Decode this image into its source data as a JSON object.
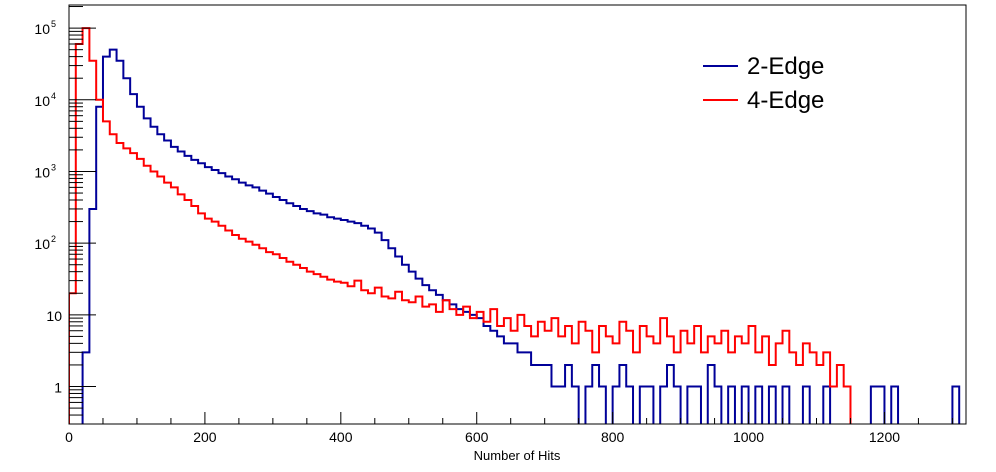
{
  "chart_data": {
    "type": "line",
    "style": "step-histogram",
    "title": "",
    "xlabel": "Number of Hits",
    "ylabel": "",
    "xlim": [
      0,
      1320
    ],
    "ylim": [
      0.3,
      210000
    ],
    "yscale": "log",
    "bin_width": 10,
    "x_ticks": [
      0,
      200,
      400,
      600,
      800,
      1000,
      1200
    ],
    "x_tick_labels": [
      "0",
      "200",
      "400",
      "600",
      "800",
      "1000",
      "1200"
    ],
    "y_ticks": [
      1,
      10,
      100,
      1000,
      10000,
      100000
    ],
    "y_tick_labels": [
      {
        "base": "1",
        "exp": ""
      },
      {
        "base": "10",
        "exp": ""
      },
      {
        "base": "10",
        "exp": "2"
      },
      {
        "base": "10",
        "exp": "3"
      },
      {
        "base": "10",
        "exp": "4"
      },
      {
        "base": "10",
        "exp": "5"
      }
    ],
    "legend_position": "top-right",
    "series": [
      {
        "name": "2-Edge",
        "color": "#000099",
        "values": [
          0,
          0,
          3,
          300,
          8000,
          40000,
          50000,
          35000,
          20000,
          12000,
          8000,
          5500,
          4200,
          3300,
          2700,
          2200,
          1900,
          1650,
          1450,
          1300,
          1150,
          1050,
          950,
          850,
          780,
          700,
          640,
          600,
          540,
          490,
          440,
          400,
          360,
          330,
          300,
          280,
          260,
          250,
          230,
          220,
          210,
          200,
          190,
          175,
          160,
          140,
          110,
          85,
          65,
          50,
          40,
          32,
          26,
          22,
          19,
          16,
          14,
          12,
          11,
          10,
          9,
          7,
          6,
          5,
          4,
          4,
          3,
          3,
          2,
          2,
          2,
          1,
          1,
          2,
          1,
          0,
          1,
          2,
          1,
          0,
          1,
          2,
          1,
          0,
          1,
          1,
          0,
          1,
          2,
          1,
          0,
          1,
          1,
          0,
          2,
          1,
          0,
          1,
          0,
          1,
          0,
          1,
          0,
          1,
          0,
          1,
          0,
          0,
          1,
          0,
          0,
          1,
          0,
          0,
          0,
          0,
          0,
          0,
          1,
          1,
          0,
          1,
          0,
          0,
          0,
          0,
          0,
          0,
          0,
          0,
          1,
          0
        ]
      },
      {
        "name": "4-Edge",
        "color": "#ff0000",
        "values": [
          20,
          60000,
          100000,
          35000,
          10000,
          5000,
          3300,
          2500,
          2100,
          1800,
          1500,
          1200,
          1000,
          850,
          700,
          600,
          480,
          400,
          330,
          260,
          220,
          200,
          175,
          150,
          130,
          115,
          105,
          95,
          85,
          75,
          70,
          62,
          55,
          50,
          45,
          40,
          37,
          34,
          31,
          29,
          28,
          25,
          30,
          22,
          20,
          24,
          18,
          17,
          21,
          16,
          15,
          18,
          13,
          14,
          11,
          16,
          12,
          10,
          13,
          9,
          11,
          8,
          12,
          7,
          9,
          6,
          10,
          7,
          5,
          8,
          6,
          9,
          5,
          7,
          4,
          8,
          6,
          3,
          7,
          5,
          4,
          8,
          6,
          3,
          7,
          5,
          4,
          9,
          5,
          3,
          6,
          4,
          7,
          3,
          5,
          4,
          6,
          3,
          5,
          4,
          7,
          3,
          5,
          2,
          4,
          6,
          3,
          2,
          4,
          3,
          2,
          3,
          1,
          2,
          1,
          0,
          0,
          0,
          0,
          0,
          0,
          0,
          0,
          0,
          0,
          0,
          0,
          0,
          0,
          0,
          0,
          0
        ]
      }
    ]
  }
}
